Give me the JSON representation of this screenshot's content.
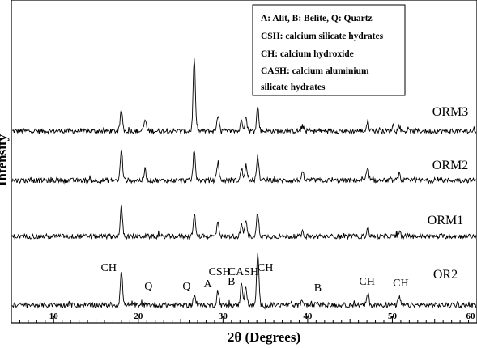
{
  "chart_data": {
    "type": "line",
    "xlabel": "2θ (Degrees)",
    "ylabel": "Intensity",
    "xlim": [
      5,
      60
    ],
    "xticks": [
      10,
      20,
      30,
      40,
      50,
      60
    ],
    "grid": false,
    "legend": {
      "placement": "top-right",
      "lines": [
        "A: Alit, B: Belite, Q: Quartz",
        "CSH: calcium silicate hydrates",
        "CH: calcium hydroxide",
        "CASH: calcium aluminium",
        "silicate hydrates"
      ]
    },
    "series": [
      {
        "name": "ORM3",
        "peaks": [
          {
            "x": 18.0,
            "h": 26
          },
          {
            "x": 20.8,
            "h": 14
          },
          {
            "x": 26.6,
            "h": 90
          },
          {
            "x": 29.4,
            "h": 20
          },
          {
            "x": 32.2,
            "h": 14
          },
          {
            "x": 32.7,
            "h": 16
          },
          {
            "x": 34.1,
            "h": 30
          },
          {
            "x": 39.4,
            "h": 6
          },
          {
            "x": 47.1,
            "h": 12
          },
          {
            "x": 50.1,
            "h": 7
          },
          {
            "x": 50.8,
            "h": 6
          }
        ]
      },
      {
        "name": "ORM2",
        "peaks": [
          {
            "x": 18.0,
            "h": 38
          },
          {
            "x": 20.8,
            "h": 12
          },
          {
            "x": 26.6,
            "h": 38
          },
          {
            "x": 29.4,
            "h": 20
          },
          {
            "x": 32.2,
            "h": 14
          },
          {
            "x": 32.7,
            "h": 18
          },
          {
            "x": 34.1,
            "h": 30
          },
          {
            "x": 39.4,
            "h": 8
          },
          {
            "x": 47.1,
            "h": 14
          },
          {
            "x": 50.8,
            "h": 8
          }
        ]
      },
      {
        "name": "ORM1",
        "peaks": [
          {
            "x": 18.0,
            "h": 36
          },
          {
            "x": 26.6,
            "h": 26
          },
          {
            "x": 29.4,
            "h": 18
          },
          {
            "x": 32.2,
            "h": 14
          },
          {
            "x": 32.7,
            "h": 18
          },
          {
            "x": 34.1,
            "h": 30
          },
          {
            "x": 39.4,
            "h": 5
          },
          {
            "x": 47.1,
            "h": 10
          },
          {
            "x": 50.8,
            "h": 6
          }
        ]
      },
      {
        "name": "OR2",
        "peaks": [
          {
            "x": 18.0,
            "h": 42
          },
          {
            "x": 26.6,
            "h": 12
          },
          {
            "x": 29.4,
            "h": 18
          },
          {
            "x": 32.2,
            "h": 28
          },
          {
            "x": 32.7,
            "h": 22
          },
          {
            "x": 34.1,
            "h": 64
          },
          {
            "x": 39.4,
            "h": 6
          },
          {
            "x": 41.1,
            "h": 4
          },
          {
            "x": 47.1,
            "h": 14
          },
          {
            "x": 50.8,
            "h": 10
          }
        ]
      }
    ],
    "annotations": [
      {
        "text": "CH",
        "x": 16.5
      },
      {
        "text": "Q",
        "x": 21.2
      },
      {
        "text": "Q",
        "x": 25.7
      },
      {
        "text": "A",
        "x": 28.2
      },
      {
        "text": "CSH",
        "x": 29.6
      },
      {
        "text": "B",
        "x": 31.0
      },
      {
        "text": "CASH",
        "x": 32.4
      },
      {
        "text": "CH",
        "x": 35.0
      },
      {
        "text": "B",
        "x": 41.2
      },
      {
        "text": "CH",
        "x": 47.0
      },
      {
        "text": "CH",
        "x": 51.0
      }
    ]
  }
}
